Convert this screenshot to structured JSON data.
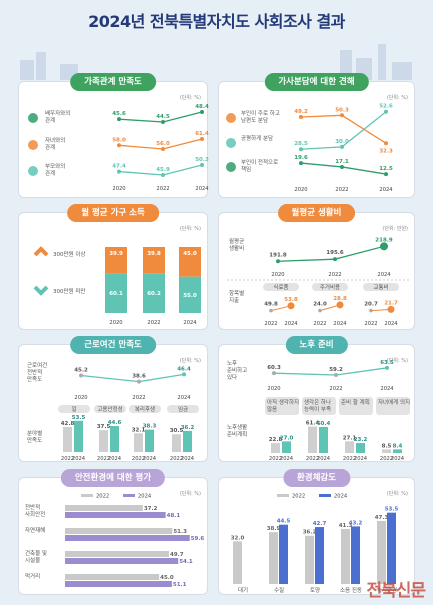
{
  "title": "2024년 전북특별자치도 사회조사 결과",
  "watermark": "전북신문",
  "colors": {
    "green": "#2f9d6a",
    "orange": "#f08a3c",
    "teal": "#5fc4b4",
    "gray": "#b8b8b8",
    "purple": "#9b8bcf",
    "blue": "#4a6fd0",
    "pink": "#e6a6c6"
  },
  "panels": {
    "family": {
      "title": "가족관계 만족도",
      "unit": "(단위: %)"
    },
    "housework": {
      "title": "가사분담에 대한 견해",
      "unit": "(단위: %)"
    },
    "income": {
      "title": "월 평균 가구 소득",
      "unit": "(단위: %)"
    },
    "living": {
      "title": "월평균 생활비",
      "unit": "(단위: 만원)"
    },
    "work": {
      "title": "근로여건 만족도",
      "unit": "(단위: %)"
    },
    "elderly": {
      "title": "노후 준비",
      "unit": "(단위: %)"
    },
    "safety": {
      "title": "안전환경에 대한 평가",
      "unit": "(단위: %)"
    },
    "env": {
      "title": "환경체감도",
      "unit": "(단위: %)"
    }
  },
  "chart_data": [
    {
      "id": "family",
      "type": "line",
      "x": [
        "2020",
        "2022",
        "2024"
      ],
      "series": [
        {
          "name": "배우자와의 관계",
          "values": [
            45.6,
            44.5,
            48.4
          ],
          "color": "#2f9d6a"
        },
        {
          "name": "자녀와의 관계",
          "values": [
            58.0,
            56.0,
            61.4
          ],
          "color": "#f08a3c"
        },
        {
          "name": "부모와의 관계",
          "values": [
            47.4,
            45.9,
            50.3
          ],
          "color": "#5fc4b4"
        }
      ]
    },
    {
      "id": "housework",
      "type": "line",
      "x": [
        "2020",
        "2022",
        "2024"
      ],
      "series": [
        {
          "name": "부인이 주로 하고 남편도 분담",
          "values": [
            49.2,
            50.3,
            32.3
          ],
          "color": "#f08a3c"
        },
        {
          "name": "공평하게 분담",
          "values": [
            28.5,
            30.0,
            52.6
          ],
          "color": "#5fc4b4"
        },
        {
          "name": "부인이 전적으로 책임",
          "values": [
            19.6,
            17.1,
            12.5
          ],
          "color": "#2f9d6a"
        }
      ]
    },
    {
      "id": "income",
      "type": "bar",
      "categories": [
        "2020",
        "2022",
        "2024"
      ],
      "series": [
        {
          "name": "300만원 미만",
          "values": [
            60.1,
            60.2,
            55.0
          ],
          "color": "#5fc4b4"
        },
        {
          "name": "300만원 이상",
          "values": [
            39.9,
            39.8,
            45.0
          ],
          "color": "#f08a3c"
        }
      ]
    },
    {
      "id": "living_total",
      "type": "line",
      "label": "월평균 생활비",
      "x": [
        "2020",
        "2022",
        "2024"
      ],
      "values": [
        191.8,
        195.6,
        218.9
      ]
    },
    {
      "id": "living_items",
      "type": "bar",
      "label": "항목별 지출",
      "x": [
        "2022",
        "2024"
      ],
      "groups": [
        {
          "name": "식료품",
          "values": [
            49.8,
            53.8
          ]
        },
        {
          "name": "주거비용",
          "values": [
            24.0,
            28.8
          ]
        },
        {
          "name": "교통비",
          "values": [
            20.7,
            21.7
          ]
        }
      ]
    },
    {
      "id": "work_total",
      "type": "line",
      "label": "근로여건 전반적 만족도",
      "x": [
        "2020",
        "2022",
        "2024"
      ],
      "values": [
        45.2,
        38.6,
        46.4
      ]
    },
    {
      "id": "work_items",
      "type": "bar",
      "label": "분야별 만족도",
      "x": [
        "2022",
        "2024"
      ],
      "groups": [
        {
          "name": "일",
          "values": [
            42.8,
            53.5
          ]
        },
        {
          "name": "고용안정성",
          "values": [
            37.5,
            44.6
          ]
        },
        {
          "name": "복리후생",
          "values": [
            32.1,
            38.3
          ]
        },
        {
          "name": "임금",
          "values": [
            30.5,
            36.2
          ]
        }
      ]
    },
    {
      "id": "elderly_total",
      "type": "line",
      "label": "노후 준비하고 있다",
      "x": [
        "2020",
        "2022",
        "2024"
      ],
      "values": [
        60.3,
        59.2,
        63.5
      ]
    },
    {
      "id": "elderly_items",
      "type": "bar",
      "label": "노후생활 준비계획",
      "x": [
        "2022",
        "2024"
      ],
      "groups": [
        {
          "name": "아직 생각하지 않음",
          "values": [
            22.8,
            27.0
          ]
        },
        {
          "name": "생각은 하나 능력이 부족",
          "values": [
            61.4,
            60.4
          ]
        },
        {
          "name": "준비 할 계획",
          "values": [
            27.1,
            23.2
          ]
        },
        {
          "name": "자녀에게 의지",
          "values": [
            8.5,
            8.4
          ]
        }
      ]
    },
    {
      "id": "safety",
      "type": "hbar",
      "x": [
        "2022",
        "2024"
      ],
      "categories": [
        "전반적 사회안전",
        "자연재해",
        "건축물 및 시설물",
        "먹거리"
      ],
      "series": [
        {
          "name": "2022",
          "values": [
            37.2,
            51.3,
            49.7,
            45.0
          ],
          "color": "#c9c9c9"
        },
        {
          "name": "2024",
          "values": [
            48.1,
            59.6,
            54.1,
            51.1
          ],
          "color": "#9b8bcf"
        }
      ]
    },
    {
      "id": "env",
      "type": "bar",
      "x": [
        "2022",
        "2024"
      ],
      "categories": [
        "대기",
        "수질",
        "토양",
        "소음 진동",
        "녹지환경"
      ],
      "series": [
        {
          "name": "2022",
          "values": [
            32.0,
            38.9,
            36.2,
            41.3,
            47.3
          ],
          "color": "#c9c9c9"
        },
        {
          "name": "2024",
          "values": [
            null,
            44.5,
            42.7,
            43.2,
            53.5
          ],
          "color": "#4a6fd0"
        }
      ]
    }
  ]
}
